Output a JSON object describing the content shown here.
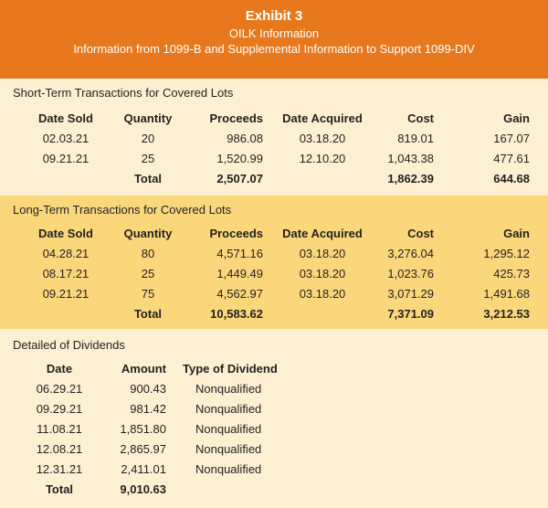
{
  "header": {
    "title": "Exhibit 3",
    "subtitle": "OILK Information",
    "description": "Information from 1099-B and Supplemental Information to Support 1099-DIV"
  },
  "colors": {
    "header_bg": "#e8781e",
    "light_bg": "#fdf0d2",
    "mid_bg": "#fbd77c"
  },
  "short_term": {
    "title": "Short-Term Transactions for Covered Lots",
    "columns": [
      "Date Sold",
      "Quantity",
      "Proceeds",
      "Date Acquired",
      "Cost",
      "Gain"
    ],
    "rows": [
      [
        "02.03.21",
        "20",
        "986.08",
        "03.18.20",
        "819.01",
        "167.07"
      ],
      [
        "09.21.21",
        "25",
        "1,520.99",
        "12.10.20",
        "1,043.38",
        "477.61"
      ]
    ],
    "total": {
      "label": "Total",
      "proceeds": "2,507.07",
      "cost": "1,862.39",
      "gain": "644.68"
    }
  },
  "long_term": {
    "title": "Long-Term Transactions for Covered Lots",
    "columns": [
      "Date Sold",
      "Quantity",
      "Proceeds",
      "Date Acquired",
      "Cost",
      "Gain"
    ],
    "rows": [
      [
        "04.28.21",
        "80",
        "4,571.16",
        "03.18.20",
        "3,276.04",
        "1,295.12"
      ],
      [
        "08.17.21",
        "25",
        "1,449.49",
        "03.18.20",
        "1,023.76",
        "425.73"
      ],
      [
        "09.21.21",
        "75",
        "4,562.97",
        "03.18.20",
        "3,071.29",
        "1,491.68"
      ]
    ],
    "total": {
      "label": "Total",
      "proceeds": "10,583.62",
      "cost": "7,371.09",
      "gain": "3,212.53"
    }
  },
  "dividends": {
    "title": "Detailed of Dividends",
    "columns": [
      "Date",
      "Amount",
      "Type of Dividend"
    ],
    "rows": [
      [
        "06.29.21",
        "900.43",
        "Nonqualified"
      ],
      [
        "09.29.21",
        "981.42",
        "Nonqualified"
      ],
      [
        "11.08.21",
        "1,851.80",
        "Nonqualified"
      ],
      [
        "12.08.21",
        "2,865.97",
        "Nonqualified"
      ],
      [
        "12.31.21",
        "2,411.01",
        "Nonqualified"
      ]
    ],
    "total": {
      "label": "Total",
      "amount": "9,010.63"
    }
  }
}
